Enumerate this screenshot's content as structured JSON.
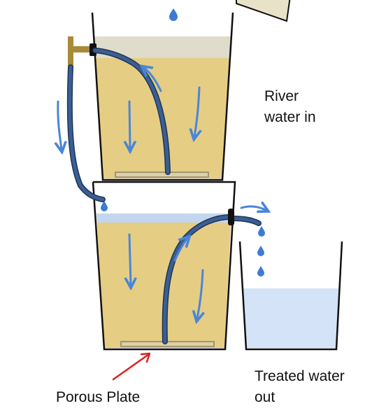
{
  "labels": {
    "river_water_in": [
      "River",
      "water in"
    ],
    "treated_water_out": [
      "Treated water",
      "out"
    ],
    "porous_plate": "Porous Plate"
  },
  "colors": {
    "murky_water": "#e6cd84",
    "murky_surface": "#e0dccb",
    "clean_water": "#d4e3f7",
    "clean_surface": "#c3d6ef",
    "pipe": "#3b5f93",
    "pipe_outline": "#1d3557",
    "flow_arrow": "#4a86d8",
    "droplet": "#3d7bd3",
    "plate": "#ddd0a6",
    "pointer_arrow": "#e02020",
    "tap": "#a88a3a",
    "jug": "#e8e2c8"
  },
  "icons": [
    "droplet-icon",
    "flow-arrow-icon",
    "tap-icon",
    "pointer-arrow-icon"
  ]
}
